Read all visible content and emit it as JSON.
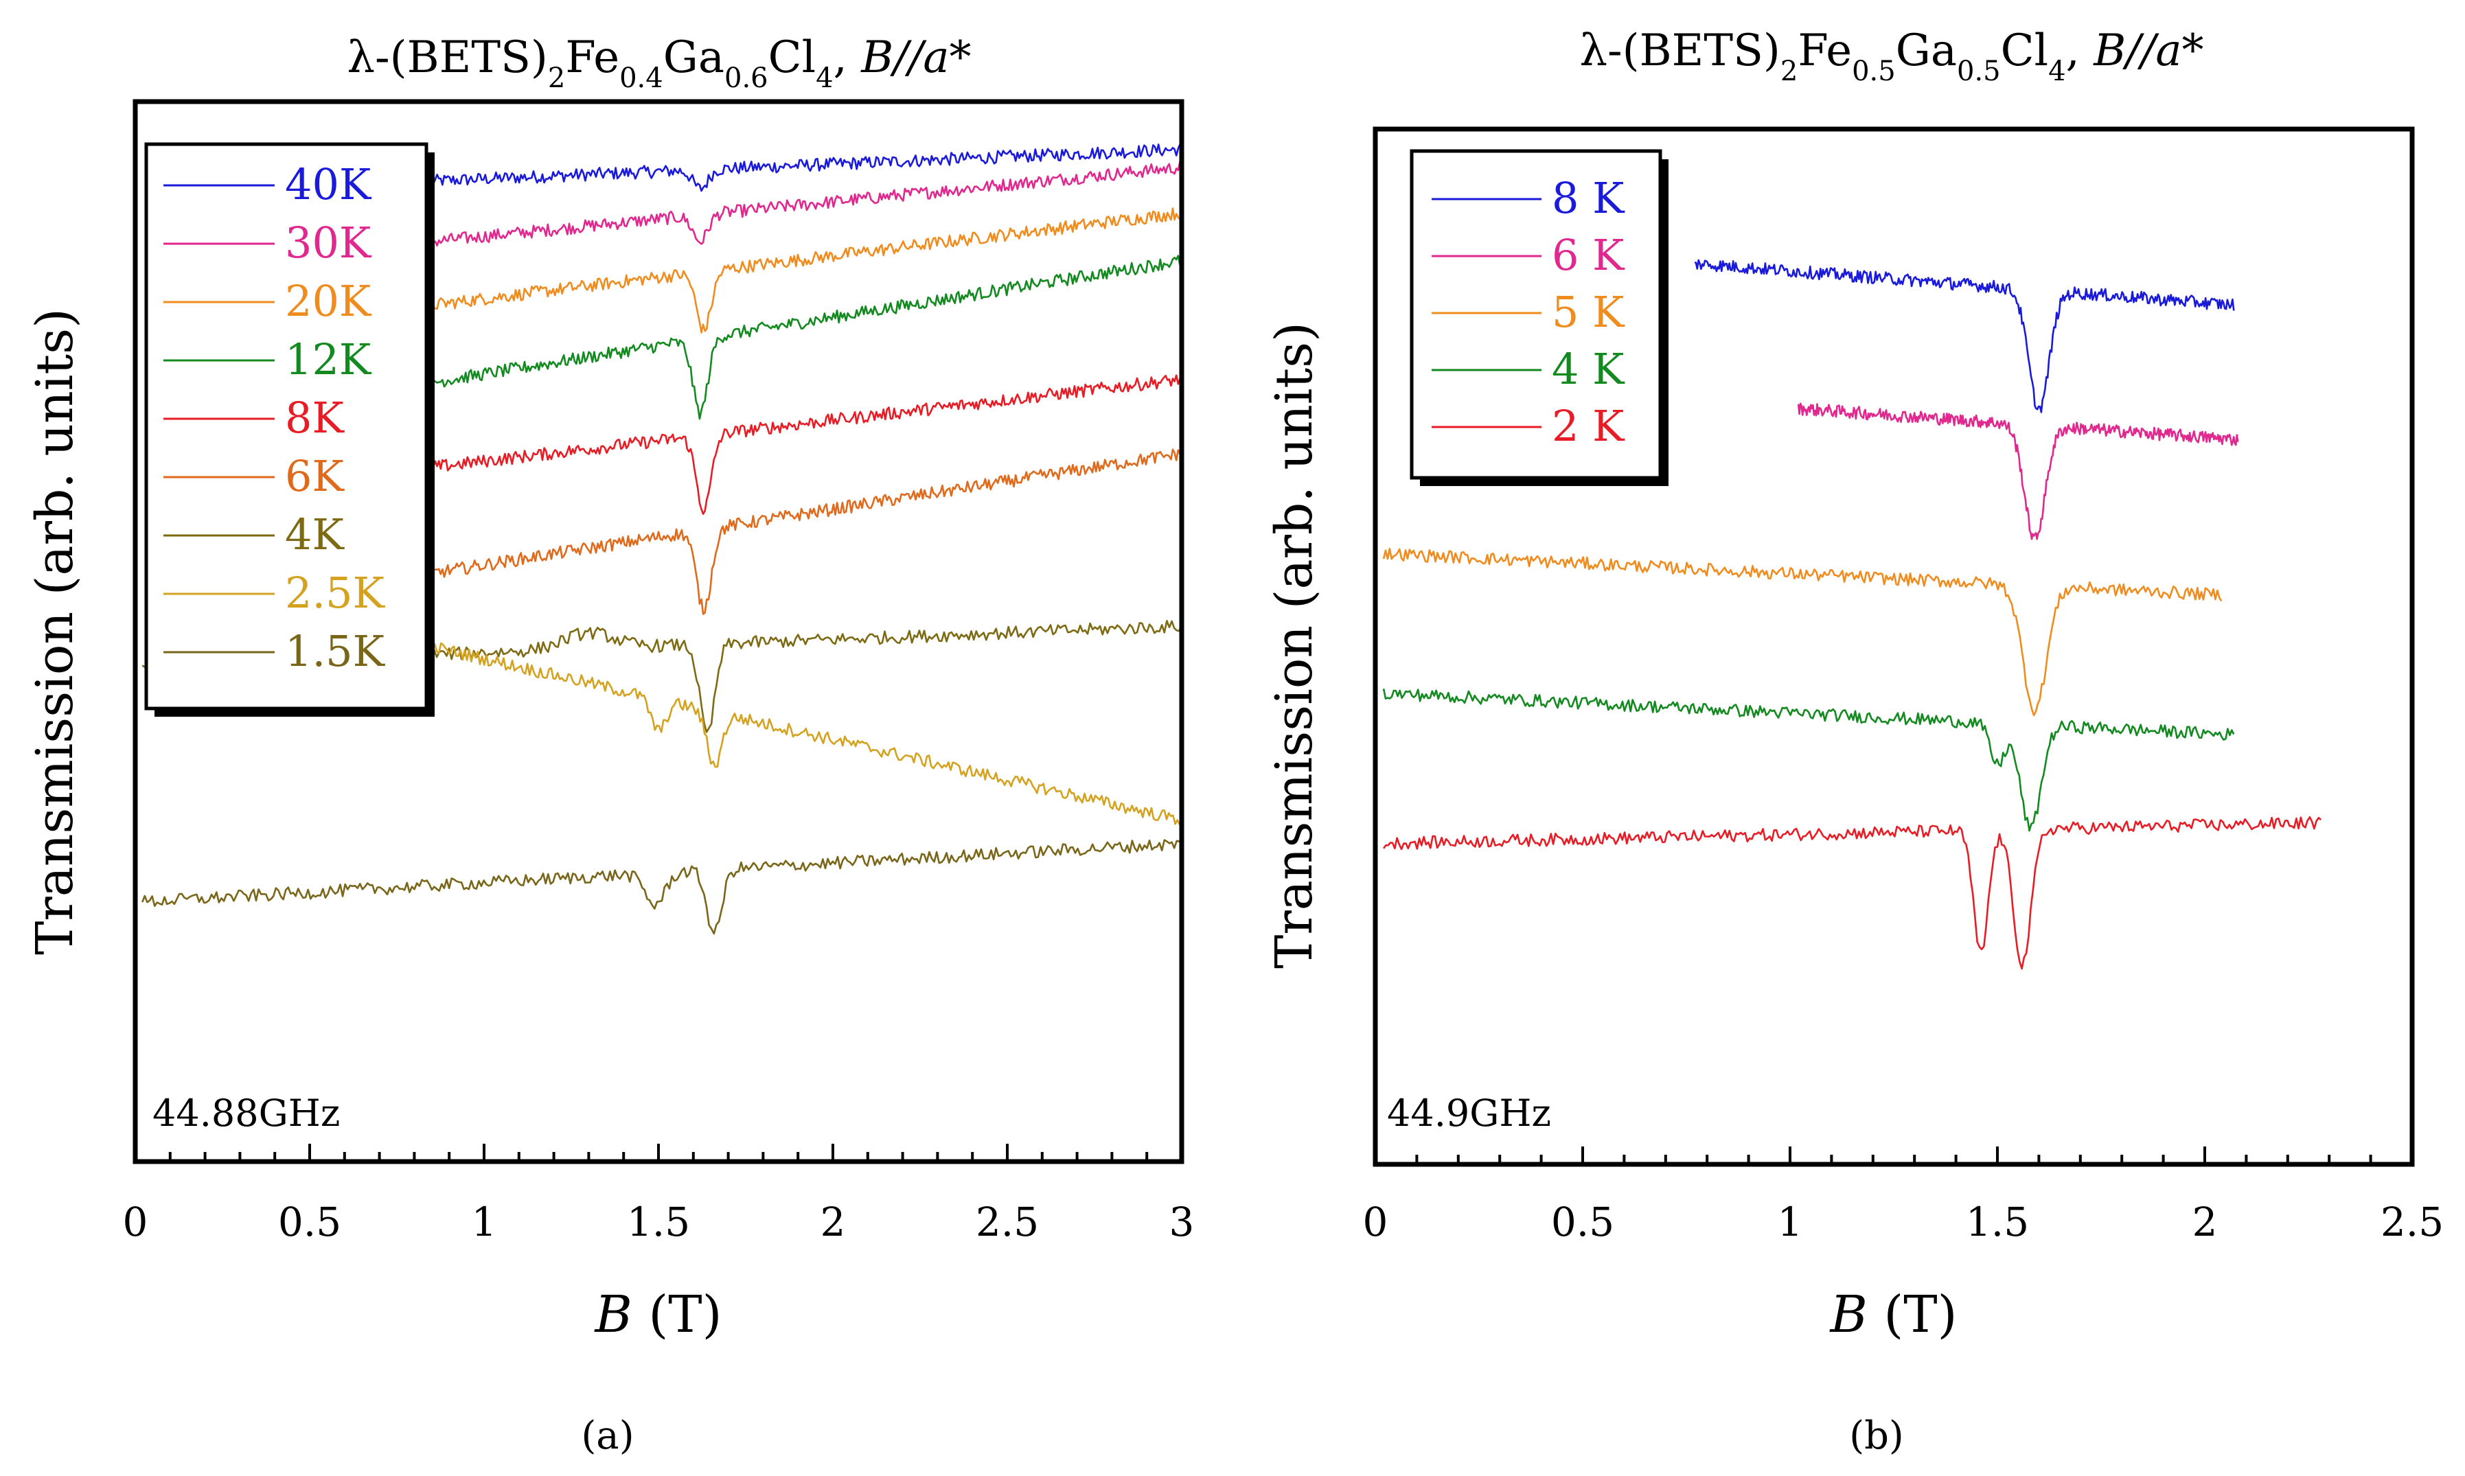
{
  "chart_data": [
    {
      "type": "line",
      "panel_label": "(a)",
      "title": {
        "prefix": "λ-(BETS)",
        "sub1": "2",
        "mid1": "Fe",
        "sub2": "0.4",
        "mid2": "Ga",
        "sub3": "0.6",
        "mid3": "Cl",
        "sub4": "4",
        "suffix_plain": ", ",
        "suffix_italic": "B//a*"
      },
      "xlabel_italic": "B",
      "xlabel_rest": " (T)",
      "ylabel": "Transmission (arb. units)",
      "annotation": "44.88GHz",
      "xlim": [
        0,
        3
      ],
      "ylim": [
        0,
        1
      ],
      "xticks": [
        "0",
        "0.5",
        "1",
        "1.5",
        "2",
        "2.5",
        "3"
      ],
      "legend_position": "top-left",
      "series": [
        {
          "name": "40K",
          "color": "#1a1adb",
          "x": [
            0.85,
            1.62,
            1.69,
            3.0
          ],
          "baseline_start": 0.925,
          "baseline_end": 0.955,
          "dips": [
            {
              "center": 1.62,
              "depth": 0.018,
              "width": 0.03
            }
          ]
        },
        {
          "name": "30K",
          "color": "#e0288f",
          "x": [
            0.85,
            1.62,
            1.68,
            3.0
          ],
          "baseline_start": 0.868,
          "baseline_end": 0.938,
          "dips": [
            {
              "center": 1.62,
              "depth": 0.025,
              "width": 0.03
            }
          ]
        },
        {
          "name": "20K",
          "color": "#f08c1e",
          "x": [
            0.85,
            1.63,
            1.7,
            3.0
          ],
          "baseline_start": 0.808,
          "baseline_end": 0.895,
          "dips": [
            {
              "center": 1.63,
              "depth": 0.055,
              "width": 0.03
            }
          ]
        },
        {
          "name": "12K",
          "color": "#138a1f",
          "x": [
            0.85,
            1.62,
            1.7,
            3.0
          ],
          "baseline_start": 0.735,
          "baseline_end": 0.85,
          "dips": [
            {
              "center": 1.62,
              "depth": 0.07,
              "width": 0.03
            }
          ]
        },
        {
          "name": "8K",
          "color": "#e81c24",
          "x": [
            0.85,
            1.63,
            1.7,
            3.0
          ],
          "baseline_start": 0.655,
          "baseline_end": 0.738,
          "dips": [
            {
              "center": 1.63,
              "depth": 0.07,
              "width": 0.03
            }
          ]
        },
        {
          "name": "6K",
          "color": "#e06a1c",
          "x": [
            0.85,
            1.63,
            1.7,
            3.0
          ],
          "baseline_start": 0.555,
          "baseline_end": 0.668,
          "dips": [
            {
              "center": 1.63,
              "depth": 0.075,
              "width": 0.03
            }
          ]
        },
        {
          "name": "4K",
          "color": "#7d6a12",
          "x": [
            0.02,
            1.64,
            1.7,
            3.0
          ],
          "baseline_start": 0.468,
          "baseline_end": 0.505,
          "dips": [
            {
              "center": 1.64,
              "depth": 0.085,
              "width": 0.03
            },
            {
              "center": 1.3,
              "depth": -0.015,
              "width": 0.1
            }
          ]
        },
        {
          "name": "2.5K",
          "color": "#d4a21e",
          "x": [
            0.4,
            1.64,
            1.7,
            3.0
          ],
          "baseline_start": 0.52,
          "baseline_end": 0.322,
          "dips": [
            {
              "center": 1.5,
              "depth": 0.03,
              "width": 0.03
            },
            {
              "center": 1.66,
              "depth": 0.05,
              "width": 0.03
            }
          ]
        },
        {
          "name": "1.5K",
          "color": "#7a6618",
          "x": [
            0.02,
            1.65,
            1.7,
            3.0
          ],
          "baseline_start": 0.245,
          "baseline_end": 0.3,
          "dips": [
            {
              "center": 1.49,
              "depth": 0.03,
              "width": 0.04
            },
            {
              "center": 1.66,
              "depth": 0.06,
              "width": 0.03
            }
          ]
        }
      ]
    },
    {
      "type": "line",
      "panel_label": "(b)",
      "title": {
        "prefix": "λ-(BETS)",
        "sub1": "2",
        "mid1": "Fe",
        "sub2": "0.5",
        "mid2": "Ga",
        "sub3": "0.5",
        "mid3": "Cl",
        "sub4": "4",
        "suffix_plain": ", ",
        "suffix_italic": "B//a*"
      },
      "xlabel_italic": "B",
      "xlabel_rest": " (T)",
      "ylabel": "Transmission (arb. units)",
      "annotation": "44.9GHz",
      "xlim": [
        0,
        2.5
      ],
      "ylim": [
        0,
        1
      ],
      "xticks": [
        "0",
        "0.5",
        "1",
        "1.5",
        "2",
        "2.5"
      ],
      "legend_position": "top-left",
      "series": [
        {
          "name": "8 K",
          "color": "#1a1adb",
          "x_start": 0.77,
          "x_end": 2.07,
          "baseline_start": 0.87,
          "baseline_end": 0.83,
          "dips": [
            {
              "center": 1.6,
              "depth": 0.115,
              "width": 0.035
            }
          ]
        },
        {
          "name": "6 K",
          "color": "#e0288f",
          "x_start": 1.02,
          "x_end": 2.08,
          "baseline_start": 0.73,
          "baseline_end": 0.7,
          "dips": [
            {
              "center": 1.59,
              "depth": 0.11,
              "width": 0.035
            }
          ]
        },
        {
          "name": "5 K",
          "color": "#f08c1e",
          "x_start": 0.02,
          "x_end": 2.04,
          "baseline_start": 0.59,
          "baseline_end": 0.55,
          "dips": [
            {
              "center": 1.59,
              "depth": 0.12,
              "width": 0.04
            }
          ]
        },
        {
          "name": "4 K",
          "color": "#138a1f",
          "x_start": 0.02,
          "x_end": 2.07,
          "baseline_start": 0.455,
          "baseline_end": 0.415,
          "dips": [
            {
              "center": 1.5,
              "depth": 0.04,
              "width": 0.025
            },
            {
              "center": 1.58,
              "depth": 0.1,
              "width": 0.035
            }
          ]
        },
        {
          "name": "2 K",
          "color": "#e81c24",
          "x_start": 0.02,
          "x_end": 2.28,
          "baseline_start": 0.31,
          "baseline_end": 0.33,
          "dips": [
            {
              "center": 1.46,
              "depth": 0.12,
              "width": 0.025
            },
            {
              "center": 1.56,
              "depth": 0.13,
              "width": 0.03
            }
          ]
        }
      ]
    }
  ]
}
